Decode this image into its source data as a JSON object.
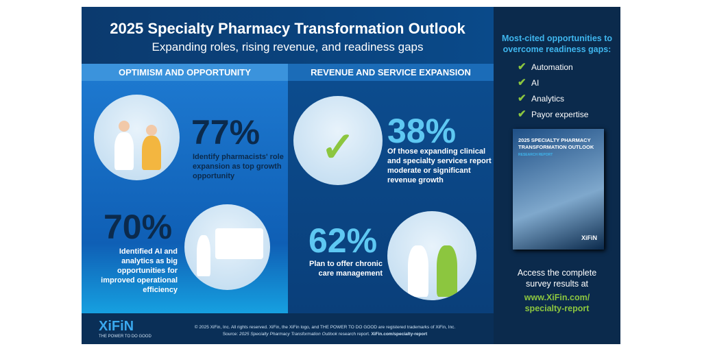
{
  "header": {
    "title": "2025 Specialty Pharmacy Transformation Outlook",
    "subtitle": "Expanding roles, rising revenue, and readiness gaps"
  },
  "sections": {
    "left": "OPTIMISM AND OPPORTUNITY",
    "right": "REVENUE AND SERVICE EXPANSION"
  },
  "stats": [
    {
      "value": "77%",
      "text": "Identify pharmacists' role expansion as top growth opportunity"
    },
    {
      "value": "70%",
      "text": "Identified AI and analytics as big opportunities for improved operational efficiency"
    },
    {
      "value": "38%",
      "text": "Of those expanding clinical and specialty services report moderate or significant revenue growth"
    },
    {
      "value": "62%",
      "text": "Plan to offer chronic care management"
    }
  ],
  "sidebar": {
    "heading": "Most-cited opportunities to overcome readiness gaps:",
    "items": [
      "Automation",
      "AI",
      "Analytics",
      "Payor expertise"
    ],
    "report": {
      "title": "2025 SPECIALTY PHARMACY TRANSFORMATION OUTLOOK",
      "label": "RESEARCH REPORT",
      "logo": "XiFiN"
    },
    "access": "Access the complete survey results at",
    "link": "www.XiFin.com/ specialty-report"
  },
  "footer": {
    "logo": "XiFiN",
    "tagline": "THE POWER TO DO GOOD",
    "copyright": "© 2025 XiFin, Inc. All rights reserved. XiFin, the XiFin logo, and THE POWER TO DO GOOD are registered trademarks of XiFin, Inc.",
    "source_prefix": "Source:",
    "source_title": "2025 Specialty Pharmacy Transformation Outlook",
    "source_suffix": "research report.",
    "source_link": "XiFin.com/specialty-report"
  },
  "colors": {
    "accent_green": "#8cc63f",
    "link_green": "#8cc63f",
    "stat_dark": "#0b2a4c",
    "stat_light": "#5ec8f2"
  }
}
